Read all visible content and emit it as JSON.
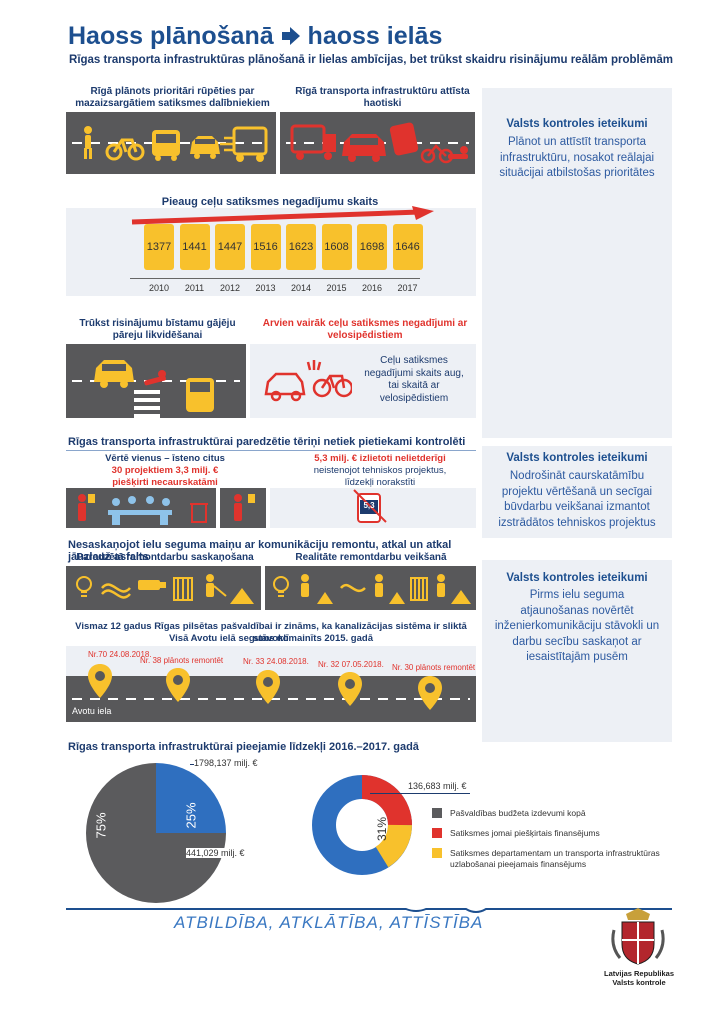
{
  "header": {
    "title": "Haoss plānošanā",
    "title_tail": "haoss ielās",
    "subtitle": "Rīgas transporta infrastruktūras plānošanā ir lielas ambīcijas, bet trūkst skaidru risinājumu reālām problēmām"
  },
  "section1": {
    "left_caption": "Rīgā plānots prioritāri rūpēties par mazaizsargātiem satiksmes dalībniekiem",
    "right_caption": "Rīgā transporta infrastruktūru attīsta haotiski"
  },
  "recommendations": [
    {
      "title": "Valsts kontroles ieteikumi",
      "text": "Plānot un attīstīt transporta infrastruktūru, nosakot reālajai situācijai atbilstošas prioritātes"
    },
    {
      "title": "Valsts kontroles ieteikumi",
      "text": "Nodrošināt caurskatāmību projektu vērtēšanā un secīgai būvdarbu veikšanai izmantot izstrādātos tehniskos projektus"
    },
    {
      "title": "Valsts kontroles ieteikumi",
      "text": "Pirms ielu seguma atjaunošanas novērtēt inženierkomunikāciju stāvokli un darbu secību saskaņot ar iesaistītajām pusēm"
    }
  ],
  "chart_data": {
    "type": "bar",
    "title": "Pieaug ceļu satiksmes negadījumu skaits",
    "categories": [
      "2010",
      "2011",
      "2012",
      "2013",
      "2014",
      "2015",
      "2016",
      "2017"
    ],
    "values": [
      1377,
      1441,
      1447,
      1516,
      1623,
      1608,
      1698,
      1646
    ],
    "xlabel": "",
    "ylabel": ""
  },
  "section3": {
    "left_caption": "Trūkst risinājumu bīstamu gājēju pāreju likvidēšanai",
    "right_caption": "Arvien vairāk ceļu satiksmes negadījumi ar velosipēdistiem",
    "right_text": "Ceļu satiksmes negadījumi skaits aug, tai skaitā ar velosipēdistiem"
  },
  "section4": {
    "heading": "Rīgas transporta infrastruktūrai paredzētie tēriņi netiek pietiekami kontrolēti",
    "left_line1": "Vērtē vienus – īsteno citus",
    "left_line2": "30 projektiem 3,3 milj. €",
    "left_line3": "piešķirti necaurskatāmi",
    "right_line1": "5,3 milj. € izlietoti nelietderīgi",
    "right_line2": "neistenojot tehniskos projektus, līdzekļi norakstīti",
    "jar_label": "5,3"
  },
  "section5": {
    "heading": "Nesaskaņojot ielu seguma maiņu ar komunikāciju remontu, atkal un atkal jāuzlauž asfalts",
    "left_caption": "Paredzētā remontdarbu saskaņošana",
    "right_caption": "Realitāte remontdarbu veikšanā",
    "fact1": "Vismaz 12 gadus Rīgas pilsētas pašvaldībai ir zināms, ka kanalizācijas sistēma ir sliktā stāvoklī",
    "fact2": "Visā Avotu ielā segums nomainīts 2015. gadā",
    "street_label": "Avotu iela",
    "pins": [
      "Nr.70 24.08.2018.",
      "Nr. 38 plānots remontēt",
      "Nr. 33 24.08.2018.",
      "Nr. 32 07.05.2018.",
      "Nr. 30 plānots remontēt"
    ]
  },
  "section6": {
    "heading": "Rīgas transporta infrastruktūrai pieejamie līdzekļi 2016.–2017. gadā",
    "pie1_big_pct": "75%",
    "pie1_small_pct": "25%",
    "pie1_top_value": "1798,137 milj. €",
    "pie1_bottom_value": "441,029 milj. €",
    "pie2_value": "136,683 milj. €",
    "pie2_pct": "31%",
    "legend": [
      {
        "label": "Pašvaldības budžeta izdevumi kopā",
        "color": "#5b5b5d"
      },
      {
        "label": "Satiksmes jomai piešķirtais finansējums",
        "color": "#e0332d"
      },
      {
        "label": "Satiksmes departamentam un transporta infrastruktūras uzlabošanai pieejamais finansējums",
        "color": "#f8c12c"
      }
    ]
  },
  "footer": {
    "motto": "ATBILDĪBA, ATKLĀTĪBA, ATTĪSTĪBA",
    "org_line1": "Latvijas Republikas",
    "org_line2": "Valsts kontrole"
  },
  "colors": {
    "blue": "#1d4f8f",
    "yellow": "#f8c12c",
    "red": "#e0332d",
    "road": "#58585a",
    "panel": "#edf0f5"
  }
}
